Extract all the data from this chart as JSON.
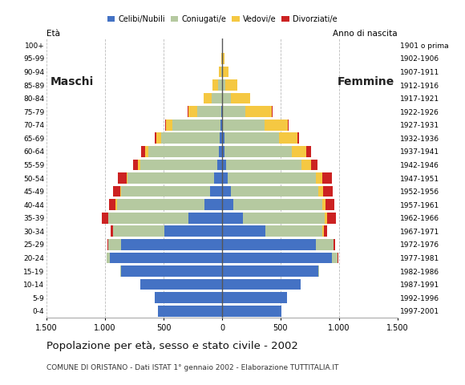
{
  "age_groups": [
    "0-4",
    "5-9",
    "10-14",
    "15-19",
    "20-24",
    "25-29",
    "30-34",
    "35-39",
    "40-44",
    "45-49",
    "50-54",
    "55-59",
    "60-64",
    "65-69",
    "70-74",
    "75-79",
    "80-84",
    "85-89",
    "90-94",
    "95-99",
    "100+"
  ],
  "birth_years": [
    "1997-2001",
    "1992-1996",
    "1987-1991",
    "1982-1986",
    "1977-1981",
    "1972-1976",
    "1967-1971",
    "1962-1966",
    "1957-1961",
    "1952-1956",
    "1947-1951",
    "1942-1946",
    "1937-1941",
    "1932-1936",
    "1927-1931",
    "1922-1926",
    "1917-1921",
    "1912-1916",
    "1907-1911",
    "1902-1906",
    "1901 o prima"
  ],
  "male_celibe": [
    545,
    575,
    700,
    860,
    960,
    860,
    490,
    290,
    150,
    100,
    65,
    40,
    30,
    22,
    12,
    5,
    2,
    1,
    1,
    0,
    0
  ],
  "male_coniugato": [
    0,
    0,
    0,
    8,
    25,
    110,
    440,
    680,
    750,
    760,
    740,
    660,
    600,
    500,
    410,
    210,
    90,
    35,
    8,
    2,
    1
  ],
  "male_vedovo": [
    0,
    0,
    0,
    0,
    0,
    0,
    4,
    4,
    8,
    8,
    12,
    18,
    28,
    38,
    55,
    75,
    65,
    45,
    18,
    7,
    2
  ],
  "male_divorziato": [
    0,
    0,
    0,
    0,
    4,
    8,
    18,
    55,
    55,
    65,
    75,
    45,
    35,
    18,
    8,
    4,
    2,
    1,
    0,
    0,
    0
  ],
  "female_celibe": [
    510,
    555,
    670,
    820,
    940,
    800,
    370,
    180,
    95,
    75,
    50,
    32,
    22,
    18,
    10,
    5,
    2,
    1,
    1,
    0,
    0
  ],
  "female_coniugato": [
    0,
    0,
    0,
    8,
    45,
    150,
    490,
    700,
    760,
    750,
    750,
    645,
    575,
    470,
    355,
    195,
    72,
    26,
    7,
    2,
    1
  ],
  "female_vedovo": [
    0,
    0,
    0,
    0,
    2,
    4,
    12,
    18,
    28,
    38,
    55,
    85,
    125,
    155,
    195,
    225,
    165,
    105,
    48,
    18,
    7
  ],
  "female_divorziato": [
    0,
    0,
    0,
    2,
    4,
    12,
    28,
    75,
    75,
    85,
    85,
    55,
    40,
    18,
    8,
    4,
    2,
    1,
    0,
    0,
    0
  ],
  "color_celibe": "#4472c4",
  "color_coniugato": "#b5c9a0",
  "color_vedovo": "#f5c842",
  "color_divorziato": "#cc2222",
  "title": "Popolazione per età, sesso e stato civile - 2002",
  "subtitle": "COMUNE DI ORISTANO - Dati ISTAT 1° gennaio 2002 - Elaborazione TUTTITALIA.IT",
  "label_maschi": "Maschi",
  "label_femmine": "Femmine",
  "label_eta": "Età",
  "label_anno": "Anno di nascita",
  "xlim": 1500,
  "legend_labels": [
    "Celibi/Nubili",
    "Coniugati/e",
    "Vedovi/e",
    "Divorziati/e"
  ],
  "bg_color": "#ffffff",
  "bar_height": 0.82,
  "xtick_labels": [
    "1.500",
    "1.000",
    "500",
    "0",
    "500",
    "1.000",
    "1.500"
  ],
  "xtick_vals": [
    -1500,
    -1000,
    -500,
    0,
    500,
    1000,
    1500
  ]
}
